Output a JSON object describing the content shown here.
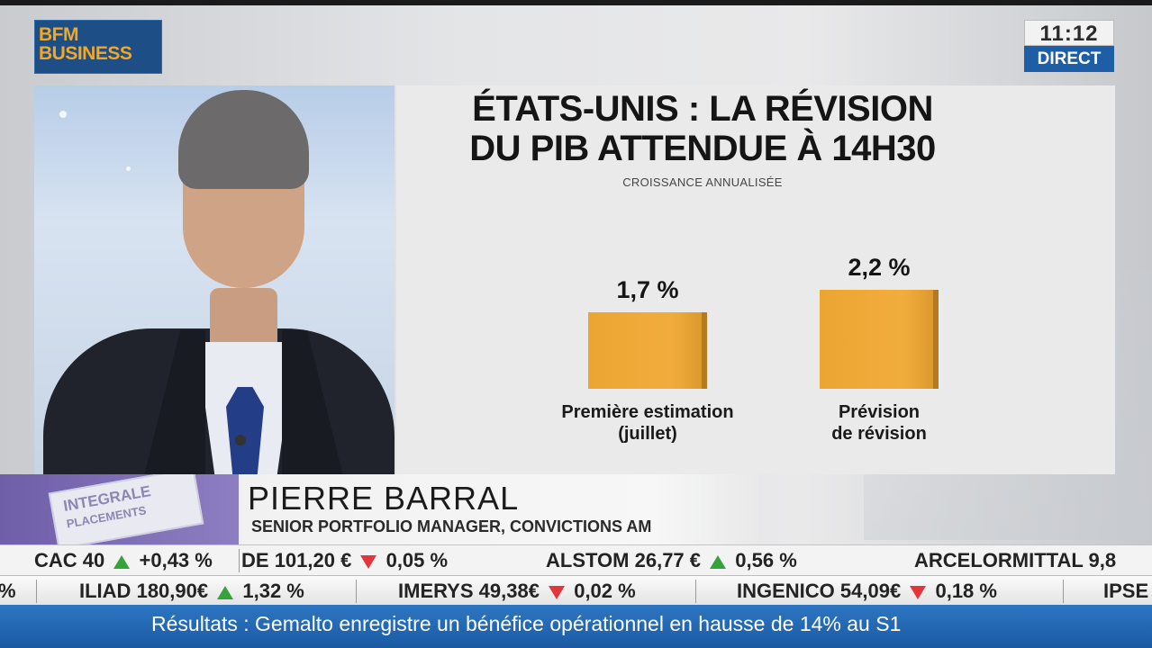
{
  "channel": {
    "logo_line1": "BFM",
    "logo_line2": "BUSINESS",
    "time": "11:12",
    "live_label": "DIRECT"
  },
  "chart_data": {
    "type": "bar",
    "title_line1": "ÉTATS-UNIS : LA RÉVISION",
    "title_line2": "DU PIB ATTENDUE À 14H30",
    "subtitle": "CROISSANCE ANNUALISÉE",
    "categories": [
      "Première estimation (juillet)",
      "Prévision de révision"
    ],
    "category_lines": [
      [
        "Première estimation",
        "(juillet)"
      ],
      [
        "Prévision",
        "de révision"
      ]
    ],
    "values": [
      1.7,
      2.2
    ],
    "value_labels": [
      "1,7 %",
      "2,2 %"
    ],
    "unit": "%",
    "color": "#eba532"
  },
  "lower_third": {
    "show_lines": [
      "INTEGRALE",
      "PLACEMENTS"
    ],
    "name": "PIERRE BARRAL",
    "role": "SENIOR PORTFOLIO MANAGER, CONVICTIONS AM"
  },
  "ticker_row1": [
    {
      "symbol": "CAC 40",
      "dir": "up",
      "change": "+0,43 %"
    },
    {
      "symbol": "DE",
      "price": "101,20 €",
      "dir": "down",
      "change": "0,05 %"
    },
    {
      "symbol": "ALSTOM",
      "price": "26,77 €",
      "dir": "up",
      "change": "0,56 %"
    },
    {
      "symbol": "ARCELORMITTAL",
      "price": "9,8"
    }
  ],
  "ticker_row2": [
    {
      "symbol": "%"
    },
    {
      "symbol": "ILIAD",
      "price": "180,90€",
      "dir": "up",
      "change": "1,32 %"
    },
    {
      "symbol": "IMERYS",
      "price": "49,38€",
      "dir": "down",
      "change": "0,02 %"
    },
    {
      "symbol": "INGENICO",
      "price": "54,09€",
      "dir": "down",
      "change": "0,18 %"
    },
    {
      "symbol": "IPSE"
    }
  ],
  "news": {
    "headline": "Résultats : Gemalto enregistre un bénéfice opérationnel en hausse de 14% au S1"
  },
  "colors": {
    "brand_blue": "#1d4f86",
    "brand_orange": "#f5a623",
    "up": "#35a23a",
    "down": "#e2363a",
    "news_bar": "#1b5aa3"
  }
}
